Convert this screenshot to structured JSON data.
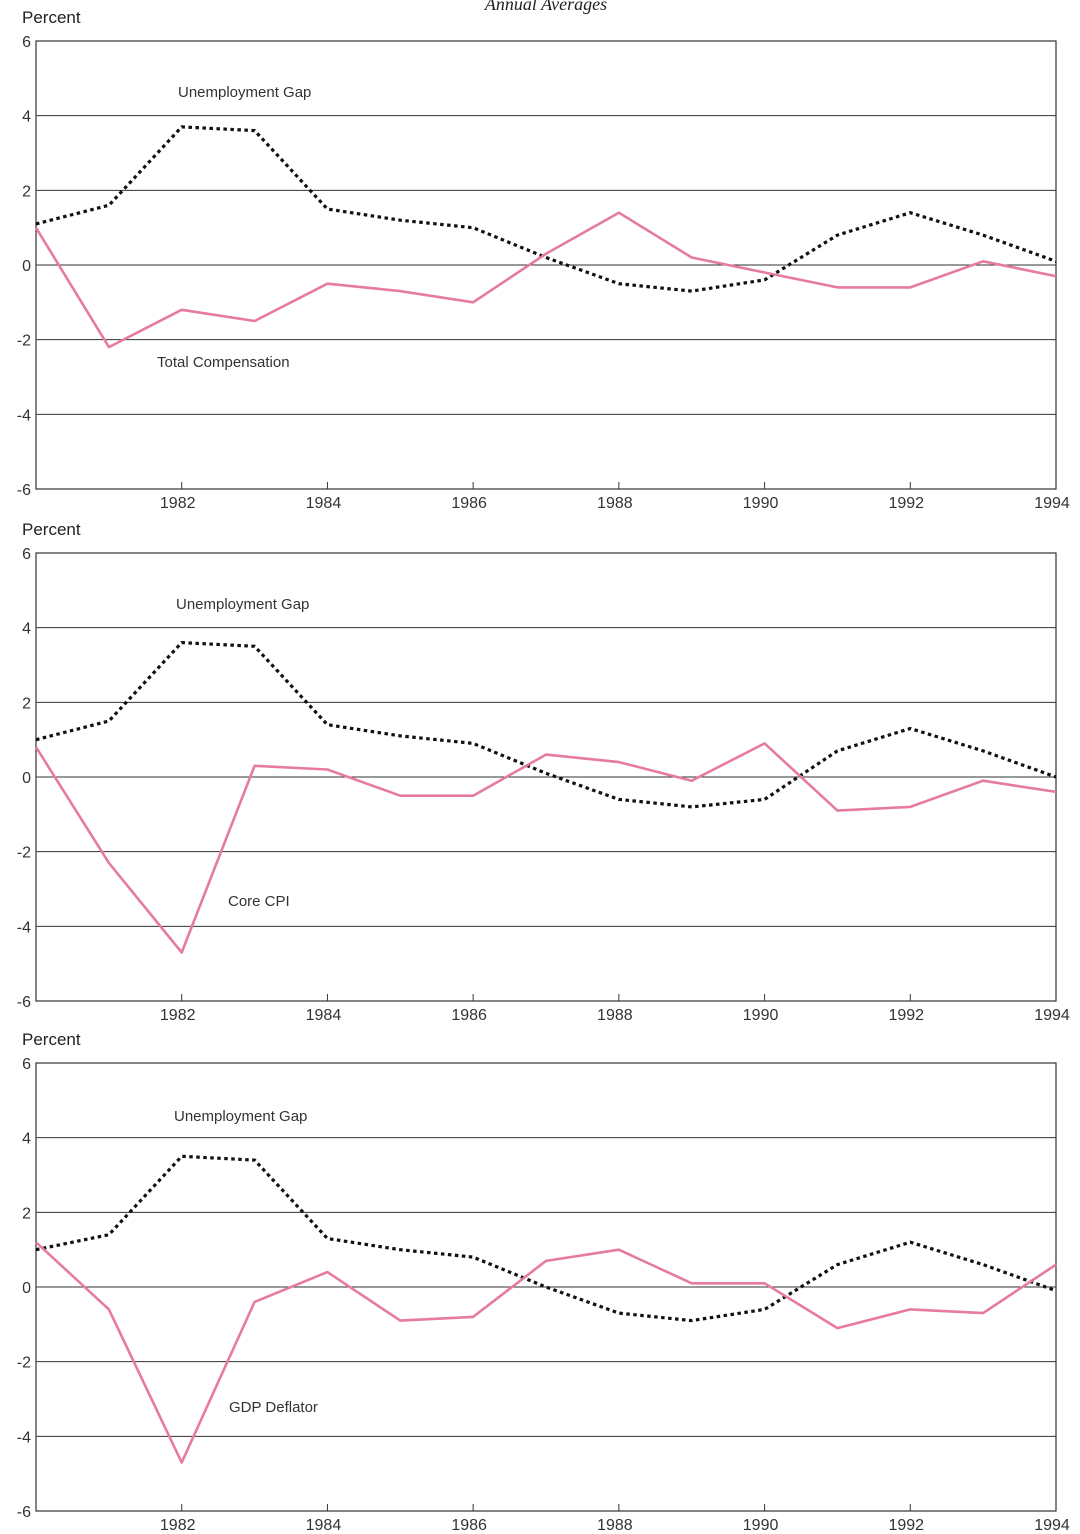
{
  "figure": {
    "caption": "Annual Averages"
  },
  "chart_data": [
    {
      "type": "line",
      "ylabel": "Percent",
      "ylim": [
        -6,
        6
      ],
      "yticks": [
        "6",
        "4",
        "2",
        "0",
        "-2",
        "-4",
        "-6"
      ],
      "xticks": [
        "1982",
        "1984",
        "1986",
        "1988",
        "1990",
        "1992",
        "1994"
      ],
      "x": [
        1980,
        1981,
        1982,
        1983,
        1984,
        1985,
        1986,
        1987,
        1988,
        1989,
        1990,
        1991,
        1992,
        1993,
        1994
      ],
      "grid": true,
      "series": [
        {
          "name": "Unemployment Gap",
          "style": "dotted",
          "color": "#111111",
          "values": [
            1.1,
            1.6,
            3.7,
            3.6,
            1.5,
            1.2,
            1.0,
            0.2,
            -0.5,
            -0.7,
            -0.4,
            0.8,
            1.4,
            0.8,
            0.1
          ]
        },
        {
          "name": "Total Compensation",
          "style": "solid",
          "color": "#e67aa3",
          "values": [
            1.0,
            -2.2,
            -1.2,
            -1.5,
            -0.5,
            -0.7,
            -1.0,
            0.3,
            1.4,
            0.2,
            -0.2,
            -0.6,
            -0.6,
            0.1,
            -0.3
          ]
        }
      ]
    },
    {
      "type": "line",
      "ylabel": "Percent",
      "ylim": [
        -6,
        6
      ],
      "yticks": [
        "6",
        "4",
        "2",
        "0",
        "-2",
        "-4",
        "-6"
      ],
      "xticks": [
        "1982",
        "1984",
        "1986",
        "1988",
        "1990",
        "1992",
        "1994"
      ],
      "x": [
        1980,
        1981,
        1982,
        1983,
        1984,
        1985,
        1986,
        1987,
        1988,
        1989,
        1990,
        1991,
        1992,
        1993,
        1994
      ],
      "grid": true,
      "series": [
        {
          "name": "Unemployment Gap",
          "style": "dotted",
          "color": "#111111",
          "values": [
            1.0,
            1.5,
            3.6,
            3.5,
            1.4,
            1.1,
            0.9,
            0.1,
            -0.6,
            -0.8,
            -0.6,
            0.7,
            1.3,
            0.7,
            0.0
          ]
        },
        {
          "name": "Core CPI",
          "style": "solid",
          "color": "#e67aa3",
          "values": [
            0.8,
            -2.3,
            -4.7,
            0.3,
            0.2,
            -0.5,
            -0.5,
            0.6,
            0.4,
            -0.1,
            0.9,
            -0.9,
            -0.8,
            -0.1,
            -0.4
          ]
        }
      ]
    },
    {
      "type": "line",
      "ylabel": "Percent",
      "ylim": [
        -6,
        6
      ],
      "yticks": [
        "6",
        "4",
        "2",
        "0",
        "-2",
        "-4",
        "-6"
      ],
      "xticks": [
        "1982",
        "1984",
        "1986",
        "1988",
        "1990",
        "1992",
        "1994"
      ],
      "x": [
        1980,
        1981,
        1982,
        1983,
        1984,
        1985,
        1986,
        1987,
        1988,
        1989,
        1990,
        1991,
        1992,
        1993,
        1994
      ],
      "grid": true,
      "series": [
        {
          "name": "Unemployment Gap",
          "style": "dotted",
          "color": "#111111",
          "values": [
            1.0,
            1.4,
            3.5,
            3.4,
            1.3,
            1.0,
            0.8,
            0.0,
            -0.7,
            -0.9,
            -0.6,
            0.6,
            1.2,
            0.6,
            -0.1
          ]
        },
        {
          "name": "GDP Deflator",
          "style": "solid",
          "color": "#e67aa3",
          "values": [
            1.2,
            -0.6,
            -4.7,
            -0.4,
            0.4,
            -0.9,
            -0.8,
            0.7,
            1.0,
            0.1,
            0.1,
            -1.1,
            -0.6,
            -0.7,
            0.6
          ]
        }
      ]
    }
  ]
}
